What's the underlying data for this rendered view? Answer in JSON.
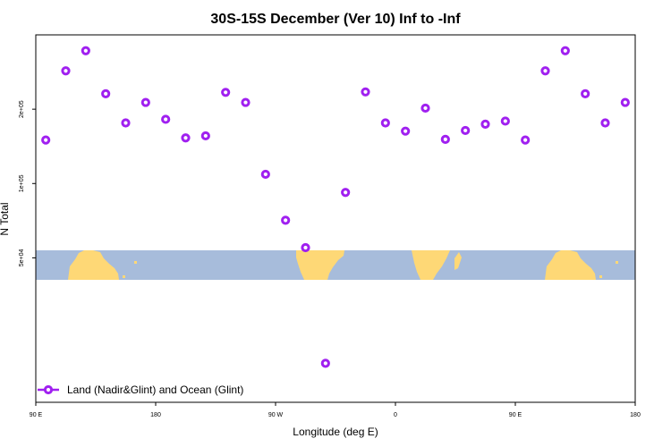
{
  "chart_data": {
    "type": "scatter",
    "title": "30S-15S December (Ver 10)   Inf to -Inf",
    "xlabel": "Longitude (deg E)",
    "ylabel": "N Total",
    "x_ticks": [
      {
        "value": 90,
        "label": "90 E"
      },
      {
        "value": 180,
        "label": "180"
      },
      {
        "value": 270,
        "label": "90 W"
      },
      {
        "value": 360,
        "label": "0"
      },
      {
        "value": 450,
        "label": "90 E"
      },
      {
        "value": 540,
        "label": "180"
      }
    ],
    "y_ticks": [
      {
        "value": 50000,
        "label": "5e+04"
      },
      {
        "value": 100000,
        "label": "1e+05"
      },
      {
        "value": 200000,
        "label": "2e+05"
      }
    ],
    "xlim": [
      90,
      540
    ],
    "ylim": [
      13000,
      400000
    ],
    "y_scale": "log",
    "color": "#a020f0",
    "series": [
      {
        "name": "Land (Nadir&Glint) and Ocean (Glint)",
        "x": [
          97.5,
          112.5,
          127.5,
          142.5,
          157.5,
          172.5,
          187.5,
          202.5,
          217.5,
          232.5,
          247.5,
          262.5,
          277.5,
          292.5,
          307.5,
          322.5,
          337.5,
          352.5,
          367.5,
          382.5,
          397.5,
          412.5,
          427.5,
          442.5,
          457.5,
          472.5,
          487.5,
          502.5,
          517.5,
          532.5
        ],
        "y": [
          150000,
          286000,
          345000,
          231000,
          176000,
          213000,
          182000,
          153000,
          156000,
          234000,
          213000,
          109000,
          71000,
          55000,
          18700,
          92000,
          235000,
          176000,
          163000,
          202000,
          151000,
          164000,
          174000,
          179000,
          150000,
          286000,
          345000,
          231000,
          176000,
          213000
        ]
      }
    ],
    "legend": {
      "label": "Land (Nadir&Glint) and Ocean (Glint)",
      "position": "bottom-left"
    },
    "map_strip": {
      "ocean_color": "#a7bcdb",
      "land_color": "#fed876"
    }
  }
}
